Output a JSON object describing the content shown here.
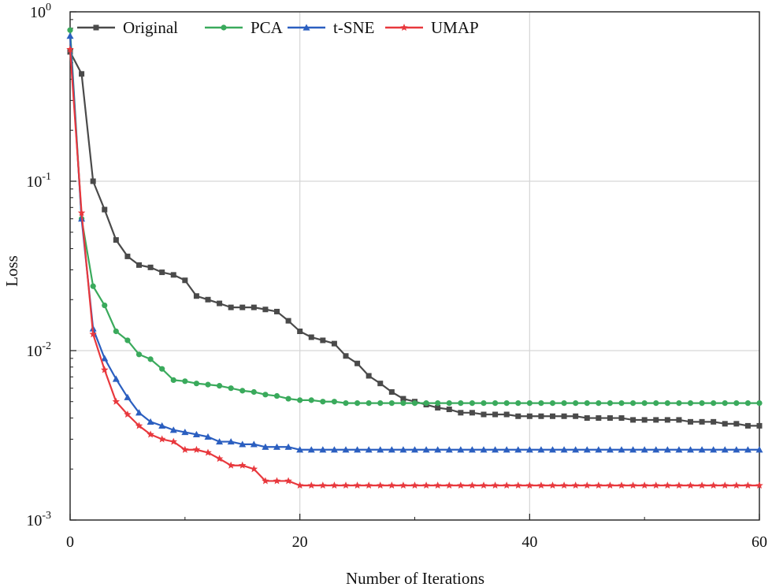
{
  "chart_data": {
    "type": "line",
    "title": "",
    "xlabel": "Number of Iterations",
    "ylabel": "Loss",
    "yscale": "log",
    "xlim": [
      0,
      60
    ],
    "ylim": [
      0.001,
      1
    ],
    "grid": true,
    "legend_position": "top-left",
    "x_ticks": [
      0,
      20,
      40,
      60
    ],
    "y_ticks": [
      {
        "value": 1,
        "base": "10",
        "exp": "0"
      },
      {
        "value": 0.1,
        "base": "10",
        "exp": "-1"
      },
      {
        "value": 0.01,
        "base": "10",
        "exp": "-2"
      },
      {
        "value": 0.001,
        "base": "10",
        "exp": "-3"
      }
    ],
    "x": [
      0,
      1,
      2,
      3,
      4,
      5,
      6,
      7,
      8,
      9,
      10,
      11,
      12,
      13,
      14,
      15,
      16,
      17,
      18,
      19,
      20,
      21,
      22,
      23,
      24,
      25,
      26,
      27,
      28,
      29,
      30,
      31,
      32,
      33,
      34,
      35,
      36,
      37,
      38,
      39,
      40,
      41,
      42,
      43,
      44,
      45,
      46,
      47,
      48,
      49,
      50,
      51,
      52,
      53,
      54,
      55,
      56,
      57,
      58,
      59,
      60
    ],
    "series": [
      {
        "name": "Original",
        "color": "#4a4a4a",
        "marker": "square",
        "values": [
          0.58,
          0.43,
          0.1,
          0.068,
          0.045,
          0.036,
          0.032,
          0.031,
          0.029,
          0.028,
          0.026,
          0.021,
          0.02,
          0.019,
          0.018,
          0.018,
          0.018,
          0.0175,
          0.017,
          0.015,
          0.013,
          0.012,
          0.0115,
          0.011,
          0.0093,
          0.0084,
          0.0071,
          0.0064,
          0.0057,
          0.0052,
          0.005,
          0.0048,
          0.0046,
          0.0045,
          0.0043,
          0.0043,
          0.0042,
          0.0042,
          0.0042,
          0.0041,
          0.0041,
          0.0041,
          0.0041,
          0.0041,
          0.0041,
          0.004,
          0.004,
          0.004,
          0.004,
          0.0039,
          0.0039,
          0.0039,
          0.0039,
          0.0039,
          0.0038,
          0.0038,
          0.0038,
          0.0037,
          0.0037,
          0.0036,
          0.0036
        ]
      },
      {
        "name": "PCA",
        "color": "#3aaa5c",
        "marker": "circle",
        "values": [
          0.78,
          0.06,
          0.024,
          0.0185,
          0.013,
          0.0115,
          0.0095,
          0.0089,
          0.0078,
          0.0067,
          0.0066,
          0.0064,
          0.0063,
          0.0062,
          0.006,
          0.0058,
          0.0057,
          0.0055,
          0.0054,
          0.0052,
          0.0051,
          0.0051,
          0.005,
          0.005,
          0.0049,
          0.0049,
          0.0049,
          0.0049,
          0.0049,
          0.0049,
          0.0049,
          0.0049,
          0.0049,
          0.0049,
          0.0049,
          0.0049,
          0.0049,
          0.0049,
          0.0049,
          0.0049,
          0.0049,
          0.0049,
          0.0049,
          0.0049,
          0.0049,
          0.0049,
          0.0049,
          0.0049,
          0.0049,
          0.0049,
          0.0049,
          0.0049,
          0.0049,
          0.0049,
          0.0049,
          0.0049,
          0.0049,
          0.0049,
          0.0049,
          0.0049,
          0.0049
        ]
      },
      {
        "name": "t-SNE",
        "color": "#2b5fc0",
        "marker": "triangle",
        "values": [
          0.72,
          0.06,
          0.0135,
          0.009,
          0.0068,
          0.0053,
          0.0043,
          0.0038,
          0.0036,
          0.0034,
          0.0033,
          0.0032,
          0.0031,
          0.0029,
          0.0029,
          0.0028,
          0.0028,
          0.0027,
          0.0027,
          0.0027,
          0.0026,
          0.0026,
          0.0026,
          0.0026,
          0.0026,
          0.0026,
          0.0026,
          0.0026,
          0.0026,
          0.0026,
          0.0026,
          0.0026,
          0.0026,
          0.0026,
          0.0026,
          0.0026,
          0.0026,
          0.0026,
          0.0026,
          0.0026,
          0.0026,
          0.0026,
          0.0026,
          0.0026,
          0.0026,
          0.0026,
          0.0026,
          0.0026,
          0.0026,
          0.0026,
          0.0026,
          0.0026,
          0.0026,
          0.0026,
          0.0026,
          0.0026,
          0.0026,
          0.0026,
          0.0026,
          0.0026,
          0.0026
        ]
      },
      {
        "name": "UMAP",
        "color": "#e8383d",
        "marker": "star",
        "values": [
          0.6,
          0.065,
          0.0125,
          0.0077,
          0.005,
          0.0042,
          0.0036,
          0.0032,
          0.003,
          0.0029,
          0.0026,
          0.0026,
          0.0025,
          0.0023,
          0.0021,
          0.0021,
          0.002,
          0.0017,
          0.0017,
          0.0017,
          0.0016,
          0.0016,
          0.0016,
          0.0016,
          0.0016,
          0.0016,
          0.0016,
          0.0016,
          0.0016,
          0.0016,
          0.0016,
          0.0016,
          0.0016,
          0.0016,
          0.0016,
          0.0016,
          0.0016,
          0.0016,
          0.0016,
          0.0016,
          0.0016,
          0.0016,
          0.0016,
          0.0016,
          0.0016,
          0.0016,
          0.0016,
          0.0016,
          0.0016,
          0.0016,
          0.0016,
          0.0016,
          0.0016,
          0.0016,
          0.0016,
          0.0016,
          0.0016,
          0.0016,
          0.0016,
          0.0016,
          0.0016
        ]
      }
    ]
  }
}
